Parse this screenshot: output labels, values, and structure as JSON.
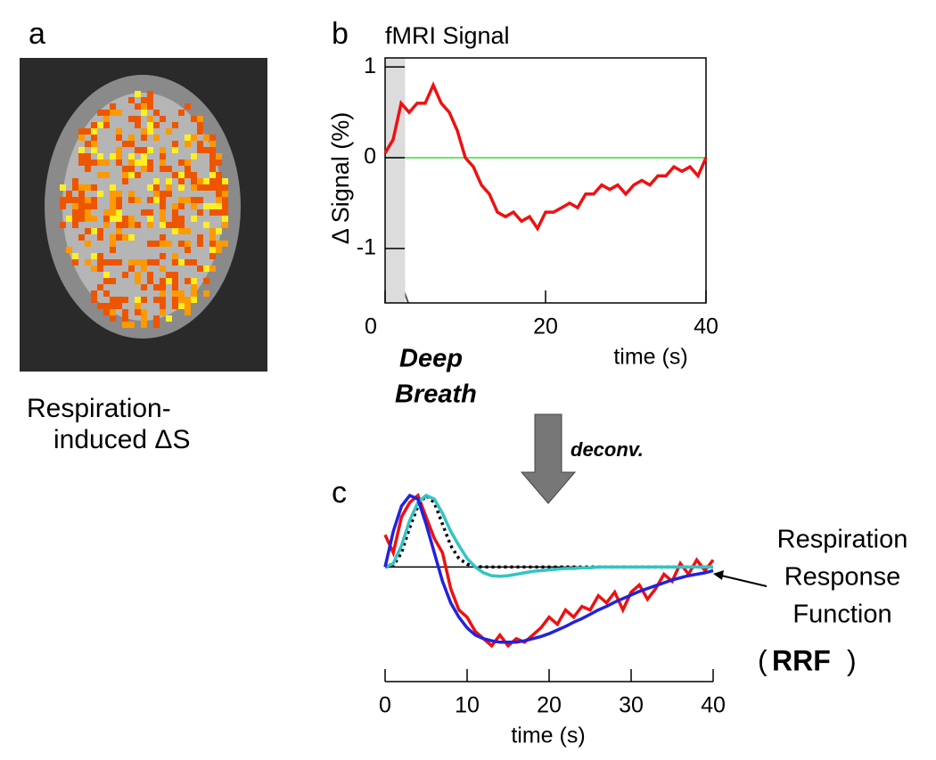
{
  "image_panel": {
    "label": "a",
    "caption": [
      "Respiration-",
      "induced ΔS"
    ]
  },
  "chart_data": [
    {
      "type": "line",
      "label": "b",
      "title": "fMRI Signal",
      "ylabel": "Δ Signal (%)",
      "xlabel": "time (s)",
      "xlim": [
        0,
        40
      ],
      "ylim": [
        -1.6,
        1.1
      ],
      "xticks": [
        0,
        20,
        40
      ],
      "yticks": [
        -1,
        0,
        1
      ],
      "shade": [
        0,
        2.5
      ],
      "shade_color": "#dcdcdc",
      "hline": 0,
      "hline_color": "#33dd33",
      "annotation": [
        "Deep",
        "Breath"
      ],
      "annotation_color": "#333399",
      "x": [
        0,
        1,
        2,
        3,
        4,
        5,
        6,
        7,
        8,
        9,
        10,
        11,
        12,
        13,
        14,
        15,
        16,
        17,
        18,
        19,
        20,
        21,
        22,
        23,
        24,
        25,
        26,
        27,
        28,
        29,
        30,
        31,
        32,
        33,
        34,
        35,
        36,
        37,
        38,
        39,
        40
      ],
      "series": [
        {
          "color": "#ee1111",
          "values": [
            0.05,
            0.2,
            0.6,
            0.5,
            0.6,
            0.6,
            0.8,
            0.6,
            0.5,
            0.3,
            0.0,
            -0.1,
            -0.3,
            -0.4,
            -0.6,
            -0.65,
            -0.6,
            -0.7,
            -0.65,
            -0.78,
            -0.6,
            -0.6,
            -0.55,
            -0.5,
            -0.55,
            -0.4,
            -0.4,
            -0.3,
            -0.35,
            -0.3,
            -0.4,
            -0.3,
            -0.25,
            -0.3,
            -0.2,
            -0.2,
            -0.1,
            -0.15,
            -0.1,
            -0.2,
            0.0
          ]
        }
      ]
    },
    {
      "type": "line",
      "label": "c",
      "xlabel": "time (s)",
      "method": "deconv.",
      "xlim": [
        0,
        40
      ],
      "ylim": [
        -1.6,
        1.2
      ],
      "xticks": [
        0,
        10,
        20,
        30,
        40
      ],
      "hline": 0,
      "hline_color": "#000000",
      "annotation": [
        "Respiration",
        "Response",
        "Function"
      ],
      "annotation_open": "(",
      "annotation_bold": "RRF",
      "annotation_close": ")",
      "x": [
        0,
        1,
        2,
        3,
        4,
        5,
        6,
        7,
        8,
        9,
        10,
        11,
        12,
        13,
        14,
        15,
        16,
        17,
        18,
        19,
        20,
        21,
        22,
        23,
        24,
        25,
        26,
        27,
        28,
        29,
        30,
        31,
        32,
        33,
        34,
        35,
        36,
        37,
        38,
        39,
        40
      ],
      "series": [
        {
          "color": "#ee1111",
          "values": [
            0.45,
            0.2,
            0.7,
            0.9,
            1.0,
            0.7,
            0.4,
            0.2,
            -0.3,
            -0.6,
            -0.7,
            -0.9,
            -1.0,
            -1.1,
            -0.95,
            -1.1,
            -1.0,
            -1.05,
            -0.95,
            -0.85,
            -0.7,
            -0.8,
            -0.6,
            -0.7,
            -0.55,
            -0.6,
            -0.4,
            -0.5,
            -0.35,
            -0.6,
            -0.35,
            -0.25,
            -0.45,
            -0.3,
            -0.1,
            -0.2,
            0.05,
            -0.1,
            0.1,
            -0.05,
            0.1
          ]
        },
        {
          "color": "#000000",
          "dashed": true,
          "values": [
            0,
            0.02,
            0.2,
            0.55,
            0.85,
            1.0,
            0.9,
            0.6,
            0.3,
            0.12,
            0.04,
            0.01,
            0,
            0,
            0,
            0,
            0,
            0,
            0,
            0,
            0,
            0,
            0,
            0,
            0,
            0,
            0,
            0,
            0,
            0,
            0,
            0,
            0,
            0,
            0,
            0,
            0,
            0,
            0,
            0,
            0
          ]
        },
        {
          "color": "#33c4c4",
          "values": [
            0,
            0.05,
            0.3,
            0.65,
            0.9,
            1.0,
            0.95,
            0.75,
            0.5,
            0.3,
            0.12,
            0,
            -0.08,
            -0.12,
            -0.13,
            -0.12,
            -0.1,
            -0.08,
            -0.06,
            -0.05,
            -0.04,
            -0.03,
            -0.02,
            -0.02,
            -0.01,
            -0.01,
            0,
            0,
            0,
            0,
            0,
            0,
            0,
            0,
            0,
            0,
            0,
            0,
            0,
            0,
            0
          ]
        },
        {
          "color": "#2222dd",
          "values": [
            0,
            0.5,
            0.85,
            1.0,
            0.95,
            0.6,
            0.2,
            -0.2,
            -0.5,
            -0.7,
            -0.85,
            -0.95,
            -1.0,
            -1.03,
            -1.05,
            -1.05,
            -1.05,
            -1.03,
            -1.0,
            -0.97,
            -0.93,
            -0.88,
            -0.83,
            -0.77,
            -0.72,
            -0.66,
            -0.6,
            -0.55,
            -0.49,
            -0.44,
            -0.39,
            -0.34,
            -0.3,
            -0.26,
            -0.22,
            -0.18,
            -0.15,
            -0.12,
            -0.1,
            -0.08,
            -0.05
          ]
        }
      ]
    }
  ]
}
